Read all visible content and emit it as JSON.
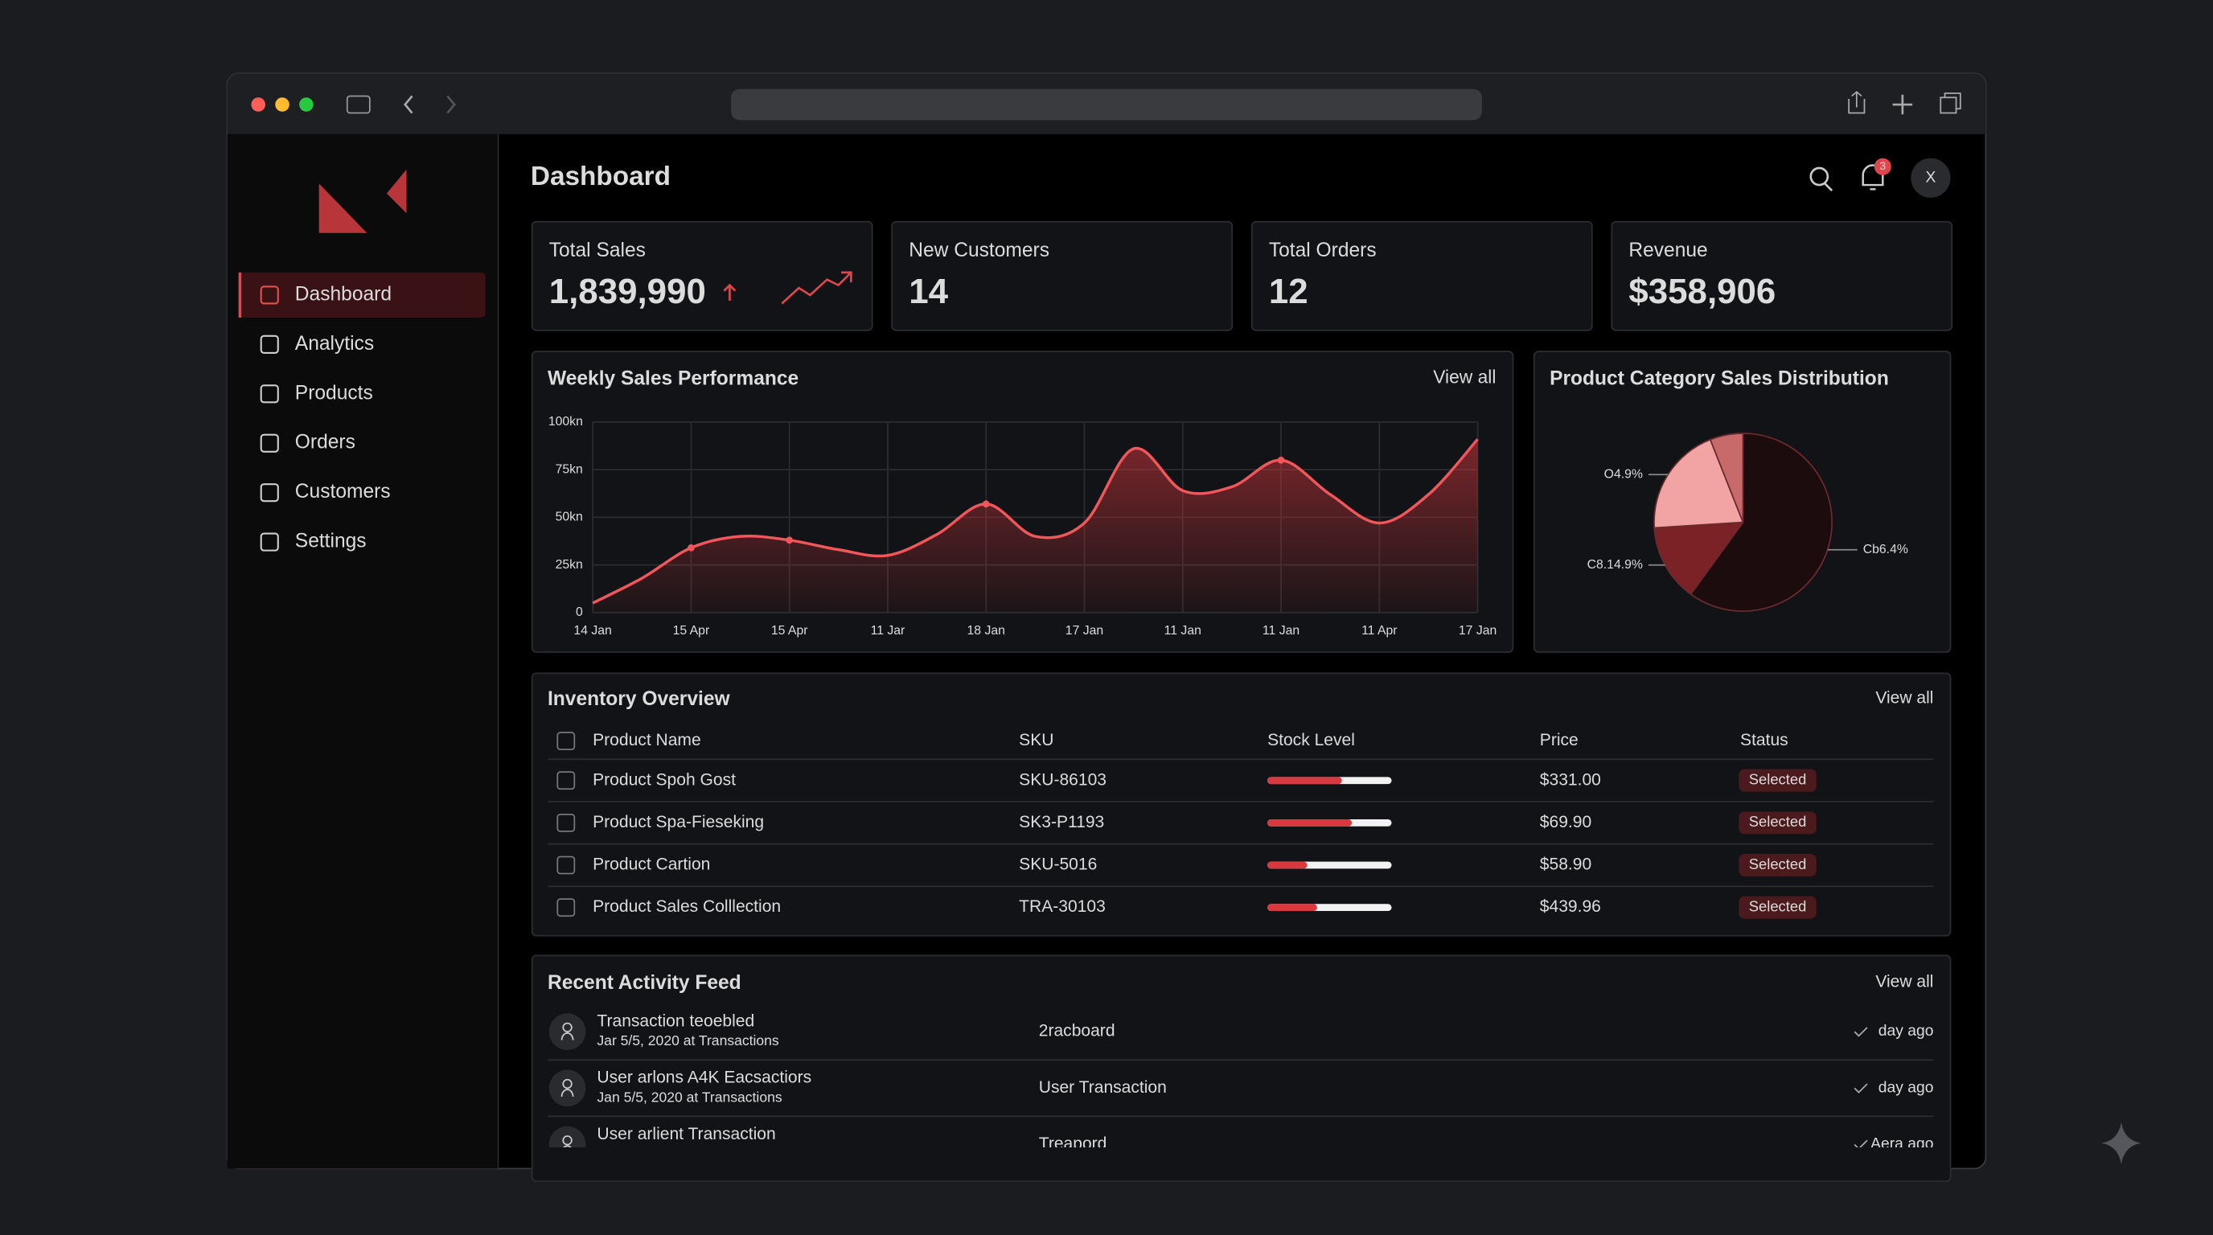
{
  "sidebar": {
    "nav": [
      "Dashboard",
      "Analytics",
      "Products",
      "Orders",
      "Customers",
      "Settings"
    ]
  },
  "header": {
    "title": "Dashboard",
    "badge": "3",
    "avatar": "X"
  },
  "kpis": [
    {
      "label": "Total Sales",
      "value": "1,839,990"
    },
    {
      "label": "New Customers",
      "value": "14"
    },
    {
      "label": "Total Orders",
      "value": "12"
    },
    {
      "label": "Revenue",
      "value": "$358,906"
    }
  ],
  "chart_data": [
    {
      "type": "line",
      "title": "Weekly Sales Performance",
      "link": "View all",
      "categories": [
        "14 Jan",
        null,
        "15 Apr",
        null,
        "15 Apr",
        null,
        "11 Jar",
        null,
        "18 Jan",
        null,
        "17 Jan",
        null,
        "11 Jan",
        null,
        "11 Jan",
        null,
        "11 Apr",
        null,
        "17 Jan"
      ],
      "series": [
        {
          "name": "Sales",
          "color": "#f0565a",
          "values": [
            5,
            18,
            34,
            40,
            38,
            33,
            30,
            41,
            57,
            40,
            47,
            86,
            64,
            66,
            80,
            62,
            47,
            62,
            91
          ]
        }
      ],
      "ylim": [
        0,
        100
      ],
      "yticks": [
        {
          "value": 0,
          "label": "0"
        },
        {
          "value": 25,
          "label": "25kn"
        },
        {
          "value": 50,
          "label": "50kn"
        },
        {
          "value": 75,
          "label": "75kn"
        },
        {
          "value": 100,
          "label": "100kn"
        }
      ],
      "grid": true
    },
    {
      "type": "pie",
      "title": "Product Category Sales Distribution",
      "values": [
        60,
        14,
        20,
        6
      ],
      "colors": [
        "#1c0c0e",
        "#7a2226",
        "#f2a3a3",
        "#c86a6a"
      ],
      "annotations": [
        "Cb6.4%",
        "C8.14.9%",
        "O4.9%"
      ]
    }
  ],
  "inventory": {
    "title": "Inventory Overview",
    "link": "View all",
    "columns": [
      "Product Name",
      "SKU",
      "Stock Level",
      "Price",
      "Status"
    ],
    "rows": [
      {
        "name": "Product Spoh Gost",
        "sku": "SKU-86103",
        "stock": 60,
        "price": "$331.00",
        "status": "Selected"
      },
      {
        "name": "Product Spa-Fieseking",
        "sku": "SK3-P1193",
        "stock": 68,
        "price": "$69.90",
        "status": "Selected"
      },
      {
        "name": "Product Cartion",
        "sku": "SKU-5016",
        "stock": 32,
        "price": "$58.90",
        "status": "Selected"
      },
      {
        "name": "Product Sales Colllection",
        "sku": "TRA-30103",
        "stock": 40,
        "price": "$439.96",
        "status": "Selected"
      }
    ]
  },
  "activity": {
    "title": "Recent Activity Feed",
    "link": "View all",
    "items": [
      {
        "title": "Transaction teoebled",
        "subtitle": "Jar 5/5, 2020 at Transactions",
        "source": "2racboard",
        "time": "day ago"
      },
      {
        "title": "User arlons A4K Eacsactiors",
        "subtitle": "Jan 5/5, 2020 at Transactions",
        "source": "User Transaction",
        "time": "day ago"
      },
      {
        "title": "User arlient Transaction",
        "subtitle": "",
        "source": "Treapord",
        "time": "Aera ago"
      }
    ]
  }
}
